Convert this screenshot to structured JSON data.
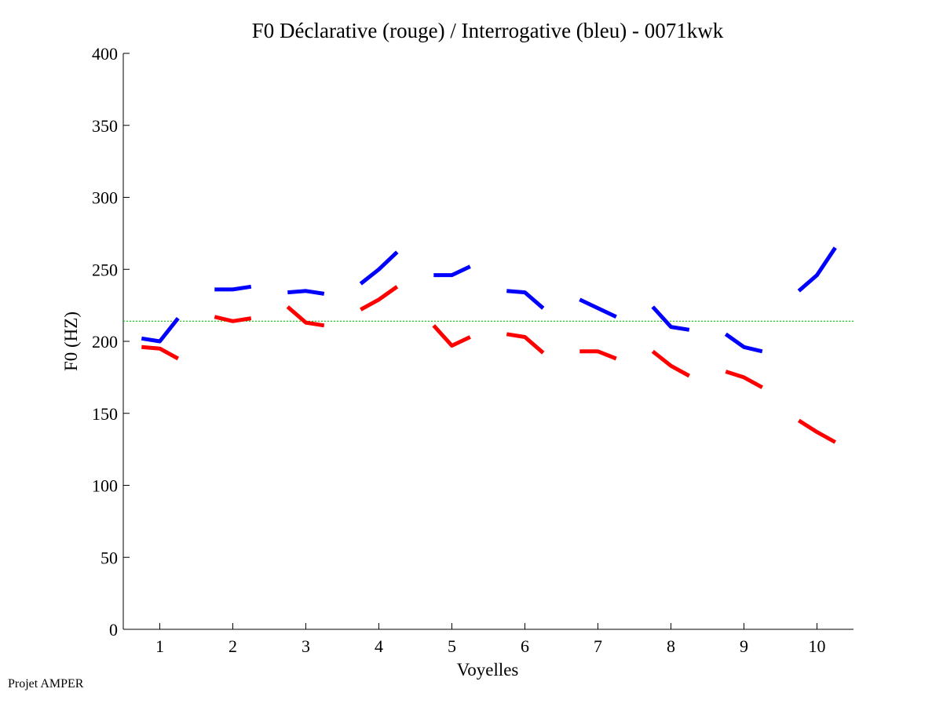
{
  "chart_data": {
    "type": "line",
    "title": "F0 Déclarative (rouge) / Interrogative (bleu) - 0071kwk",
    "xlabel": "Voyelles",
    "ylabel": "F0 (HZ)",
    "xlim": [
      0.5,
      10.5
    ],
    "ylim": [
      0,
      400
    ],
    "x_ticks": [
      "1",
      "2",
      "3",
      "4",
      "5",
      "6",
      "7",
      "8",
      "9",
      "10"
    ],
    "y_ticks": [
      "0",
      "50",
      "100",
      "150",
      "200",
      "250",
      "300",
      "350",
      "400"
    ],
    "grid": false,
    "reference_line": {
      "value": 214,
      "color": "#00cc00",
      "style": "dotted"
    },
    "series": [
      {
        "name": "Interrogative (bleu)",
        "color": "#0000ff",
        "segments": [
          {
            "vowel": 1,
            "points": [
              [
                0.75,
                202
              ],
              [
                1.0,
                200
              ],
              [
                1.25,
                216
              ]
            ]
          },
          {
            "vowel": 2,
            "points": [
              [
                1.75,
                236
              ],
              [
                2.0,
                236
              ],
              [
                2.25,
                238
              ]
            ]
          },
          {
            "vowel": 3,
            "points": [
              [
                2.75,
                234
              ],
              [
                3.0,
                235
              ],
              [
                3.25,
                233
              ]
            ]
          },
          {
            "vowel": 4,
            "points": [
              [
                3.75,
                240
              ],
              [
                4.0,
                250
              ],
              [
                4.25,
                262
              ]
            ]
          },
          {
            "vowel": 5,
            "points": [
              [
                4.75,
                246
              ],
              [
                5.0,
                246
              ],
              [
                5.25,
                252
              ]
            ]
          },
          {
            "vowel": 6,
            "points": [
              [
                5.75,
                235
              ],
              [
                6.0,
                234
              ],
              [
                6.25,
                223
              ]
            ]
          },
          {
            "vowel": 7,
            "points": [
              [
                6.75,
                229
              ],
              [
                7.0,
                223
              ],
              [
                7.25,
                217
              ]
            ]
          },
          {
            "vowel": 8,
            "points": [
              [
                7.75,
                224
              ],
              [
                8.0,
                210
              ],
              [
                8.25,
                208
              ]
            ]
          },
          {
            "vowel": 9,
            "points": [
              [
                8.75,
                205
              ],
              [
                9.0,
                196
              ],
              [
                9.25,
                193
              ]
            ]
          },
          {
            "vowel": 10,
            "points": [
              [
                9.75,
                235
              ],
              [
                10.0,
                246
              ],
              [
                10.25,
                265
              ]
            ]
          }
        ]
      },
      {
        "name": "Déclarative (rouge)",
        "color": "#ff0000",
        "segments": [
          {
            "vowel": 1,
            "points": [
              [
                0.75,
                196
              ],
              [
                1.0,
                195
              ],
              [
                1.25,
                188
              ]
            ]
          },
          {
            "vowel": 2,
            "points": [
              [
                1.75,
                217
              ],
              [
                2.0,
                214
              ],
              [
                2.25,
                216
              ]
            ]
          },
          {
            "vowel": 3,
            "points": [
              [
                2.75,
                224
              ],
              [
                3.0,
                213
              ],
              [
                3.25,
                211
              ]
            ]
          },
          {
            "vowel": 4,
            "points": [
              [
                3.75,
                222
              ],
              [
                4.0,
                229
              ],
              [
                4.25,
                238
              ]
            ]
          },
          {
            "vowel": 5,
            "points": [
              [
                4.75,
                211
              ],
              [
                5.0,
                197
              ],
              [
                5.25,
                203
              ]
            ]
          },
          {
            "vowel": 6,
            "points": [
              [
                5.75,
                205
              ],
              [
                6.0,
                203
              ],
              [
                6.25,
                192
              ]
            ]
          },
          {
            "vowel": 7,
            "points": [
              [
                6.75,
                193
              ],
              [
                7.0,
                193
              ],
              [
                7.25,
                188
              ]
            ]
          },
          {
            "vowel": 8,
            "points": [
              [
                7.75,
                193
              ],
              [
                8.0,
                183
              ],
              [
                8.25,
                176
              ]
            ]
          },
          {
            "vowel": 9,
            "points": [
              [
                8.75,
                179
              ],
              [
                9.0,
                175
              ],
              [
                9.25,
                168
              ]
            ]
          },
          {
            "vowel": 10,
            "points": [
              [
                9.75,
                145
              ],
              [
                10.0,
                137
              ],
              [
                10.25,
                130
              ]
            ]
          }
        ]
      }
    ]
  },
  "footer": {
    "text": "Projet AMPER"
  }
}
